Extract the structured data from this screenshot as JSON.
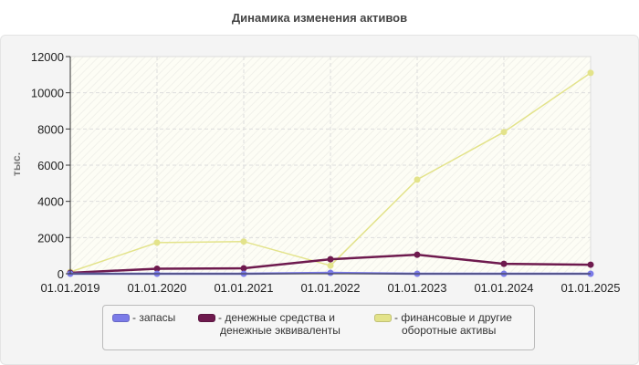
{
  "chart_data": {
    "type": "line",
    "title": "Динамика изменения активов",
    "ylabel": "тыс.",
    "xlabel": "",
    "categories": [
      "01.01.2019",
      "01.01.2020",
      "01.01.2021",
      "01.01.2022",
      "01.01.2023",
      "01.01.2024",
      "01.01.2025"
    ],
    "ylim": [
      0,
      12000
    ],
    "yticks": [
      0,
      2000,
      4000,
      6000,
      8000,
      10000,
      12000
    ],
    "grid": true,
    "legend_position": "bottom",
    "series": [
      {
        "name": "- запасы",
        "color": "#7b7be8",
        "values": [
          0,
          0,
          0,
          50,
          0,
          0,
          0
        ]
      },
      {
        "name": "- денежные средства и денежные эквиваленты",
        "color": "#6e1a4e",
        "values": [
          50,
          280,
          300,
          800,
          1050,
          550,
          500
        ]
      },
      {
        "name": "- финансовые и другие оборотные активы",
        "color": "#e3e38a",
        "values": [
          100,
          1720,
          1780,
          450,
          5200,
          7830,
          11100
        ]
      }
    ]
  },
  "legend": {
    "item1": "- запасы",
    "item2_l1": "- денежные средства и",
    "item2_l2": "денежные эквиваленты",
    "item3_l1": "- финансовые и другие",
    "item3_l2": "оборотные активы"
  }
}
